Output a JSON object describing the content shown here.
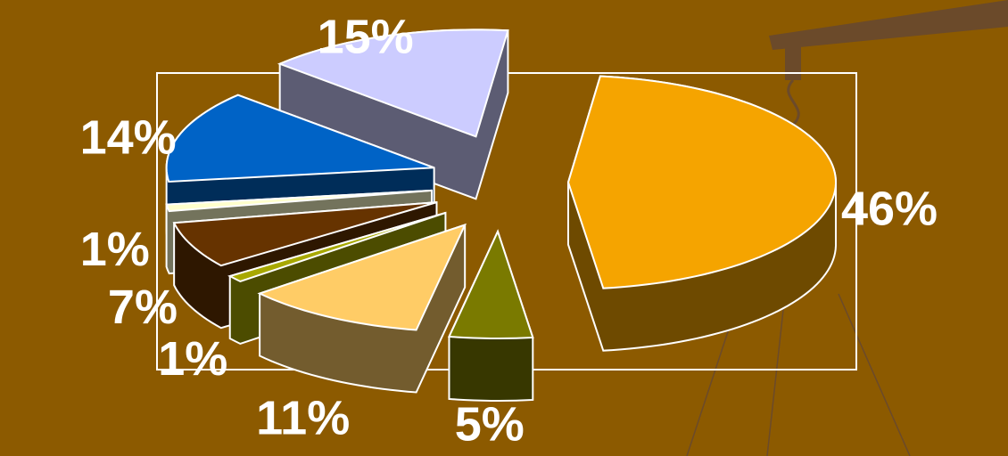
{
  "chart_data": {
    "type": "pie",
    "values": [
      46,
      5,
      11,
      1,
      7,
      1,
      14,
      15
    ],
    "value_labels": [
      "46%",
      "5%",
      "11%",
      "1%",
      "7%",
      "1%",
      "14%",
      "15%"
    ],
    "colors": [
      "#f5a400",
      "#7a7a00",
      "#ffcc66",
      "#a8a800",
      "#663300",
      "#ffffcc",
      "#0063c6",
      "#ccccff"
    ]
  }
}
